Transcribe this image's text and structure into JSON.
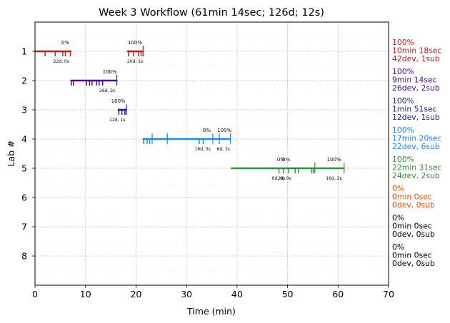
{
  "chart_data": {
    "type": "timeline",
    "title": "Week 3 Workflow (61min 14sec; 126d; 12s)",
    "xlabel": "Time (min)",
    "ylabel": "Lab #",
    "xlim": [
      0,
      70
    ],
    "ylim": [
      9,
      0
    ],
    "xticks": [
      "0",
      "10",
      "20",
      "30",
      "40",
      "50",
      "60",
      "70"
    ],
    "yticks": [
      "1",
      "2",
      "3",
      "4",
      "5",
      "6",
      "7",
      "8"
    ],
    "grid": true,
    "labs": [
      {
        "lab": 1,
        "color": "#b22222",
        "start": 0,
        "end": 21.5,
        "bars": [
          [
            0,
            7.2
          ],
          [
            18.2,
            21.5
          ]
        ],
        "ticks": [
          2,
          4,
          5.5,
          6,
          7,
          18.5,
          19.5,
          20.5,
          21,
          21.4
        ],
        "submit_ticks": [
          21.4
        ],
        "pct_labels": [
          {
            "x": 6,
            "text": "0%"
          },
          {
            "x": 19.8,
            "text": "100%"
          }
        ],
        "count_labels": [
          {
            "x": 5.2,
            "text": "22d, 0s"
          },
          {
            "x": 19.8,
            "text": "20d, 1s"
          }
        ],
        "summary": [
          "100%",
          "10min 18sec",
          "42dev, 1sub"
        ]
      },
      {
        "lab": 2,
        "color": "#4b0f86",
        "start": 7,
        "end": 16.3,
        "bars": [
          [
            7,
            16.3
          ]
        ],
        "ticks": [
          7.2,
          7.6,
          10.2,
          10.8,
          11.3,
          12.2,
          12.7,
          13.4
        ],
        "submit_ticks": [
          16.2
        ],
        "pct_labels": [
          {
            "x": 14.8,
            "text": "100%"
          }
        ],
        "count_labels": [
          {
            "x": 14.3,
            "text": "26d, 2s"
          }
        ],
        "summary": [
          "100%",
          "9min 14sec",
          "26dev, 2sub"
        ]
      },
      {
        "lab": 3,
        "color": "#1a237e",
        "start": 16.4,
        "end": 18.2,
        "bars": [
          [
            16.4,
            18.2
          ]
        ],
        "ticks": [
          16.6,
          17.2,
          17.8
        ],
        "submit_ticks": [
          18.1
        ],
        "pct_labels": [
          {
            "x": 16.5,
            "text": "100%"
          }
        ],
        "count_labels": [
          {
            "x": 16.3,
            "text": "12d, 1s"
          }
        ],
        "summary": [
          "100%",
          "1min 51sec",
          "12dev, 1sub"
        ]
      },
      {
        "lab": 4,
        "color": "#1e88e5",
        "start": 21.3,
        "end": 38.8,
        "bars": [
          [
            21.3,
            38.8
          ]
        ],
        "ticks": [
          21.5,
          22.2,
          22.7,
          32.5,
          33.3
        ],
        "submit_ticks": [
          23.2,
          26.2,
          35.2,
          36.5,
          38.7
        ],
        "pct_labels": [
          {
            "x": 34,
            "text": "0%"
          },
          {
            "x": 37.5,
            "text": "100%"
          }
        ],
        "count_labels": [
          {
            "x": 33.2,
            "text": "16d, 3s"
          },
          {
            "x": 37.3,
            "text": "6d, 3s"
          }
        ],
        "summary": [
          "100%",
          "17min 20sec",
          "22dev, 6sub"
        ]
      },
      {
        "lab": 5,
        "color": "#388e3c",
        "start": 38.8,
        "end": 61.3,
        "bars": [
          [
            38.8,
            61.3
          ]
        ],
        "ticks": [
          48.3,
          49.2,
          50.2,
          51.5,
          52.2,
          54.8,
          55.2
        ],
        "submit_ticks": [
          55.4,
          61.2
        ],
        "pct_labels": [
          {
            "x": 48.7,
            "text": "0%"
          },
          {
            "x": 49.7,
            "text": "0%"
          },
          {
            "x": 59.2,
            "text": "100%"
          }
        ],
        "count_labels": [
          {
            "x": 48.2,
            "text": "6d, 0s"
          },
          {
            "x": 49.4,
            "text": "2d, 0s"
          },
          {
            "x": 59.2,
            "text": "16d, 2s"
          }
        ],
        "summary": [
          "100%",
          "22min 31sec",
          "24dev, 2sub"
        ]
      },
      {
        "lab": 6,
        "color": "#e65100",
        "bars": [],
        "ticks": [],
        "submit_ticks": [],
        "pct_labels": [],
        "count_labels": [],
        "summary": [
          "0%",
          "0min 0sec",
          "0dev, 0sub"
        ]
      },
      {
        "lab": 7,
        "color": "#000000",
        "bars": [],
        "ticks": [],
        "submit_ticks": [],
        "pct_labels": [],
        "count_labels": [],
        "summary": [
          "0%",
          "0min 0sec",
          "0dev, 0sub"
        ]
      },
      {
        "lab": 8,
        "color": "#000000",
        "bars": [],
        "ticks": [],
        "submit_ticks": [],
        "pct_labels": [],
        "count_labels": [],
        "summary": [
          "0%",
          "0min 0sec",
          "0dev, 0sub"
        ]
      }
    ]
  }
}
